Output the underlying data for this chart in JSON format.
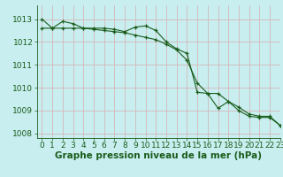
{
  "title": "Graphe pression niveau de la mer (hPa)",
  "background_color": "#c8eef0",
  "plot_bg_color": "#c8eef0",
  "grid_color": "#d4b8b8",
  "line_color": "#1a5c1a",
  "marker_color": "#1a5c1a",
  "xlim": [
    -0.5,
    23
  ],
  "ylim": [
    1007.8,
    1013.6
  ],
  "yticks": [
    1008,
    1009,
    1010,
    1011,
    1012,
    1013
  ],
  "xticks": [
    0,
    1,
    2,
    3,
    4,
    5,
    6,
    7,
    8,
    9,
    10,
    11,
    12,
    13,
    14,
    15,
    16,
    17,
    18,
    19,
    20,
    21,
    22,
    23
  ],
  "series1": [
    1013.0,
    1012.6,
    1012.9,
    1012.8,
    1012.6,
    1012.6,
    1012.6,
    1012.55,
    1012.45,
    1012.65,
    1012.7,
    1012.5,
    1012.0,
    1011.7,
    1011.5,
    1009.8,
    1009.75,
    1009.1,
    1009.4,
    1009.0,
    1008.75,
    1008.7,
    1008.7,
    1008.35
  ],
  "series2": [
    1012.6,
    1012.6,
    1012.6,
    1012.6,
    1012.6,
    1012.55,
    1012.5,
    1012.45,
    1012.4,
    1012.3,
    1012.2,
    1012.1,
    1011.9,
    1011.65,
    1011.2,
    1010.2,
    1009.75,
    1009.75,
    1009.4,
    1009.15,
    1008.85,
    1008.75,
    1008.75,
    1008.35
  ],
  "title_fontsize": 7.5,
  "tick_fontsize": 6.5
}
